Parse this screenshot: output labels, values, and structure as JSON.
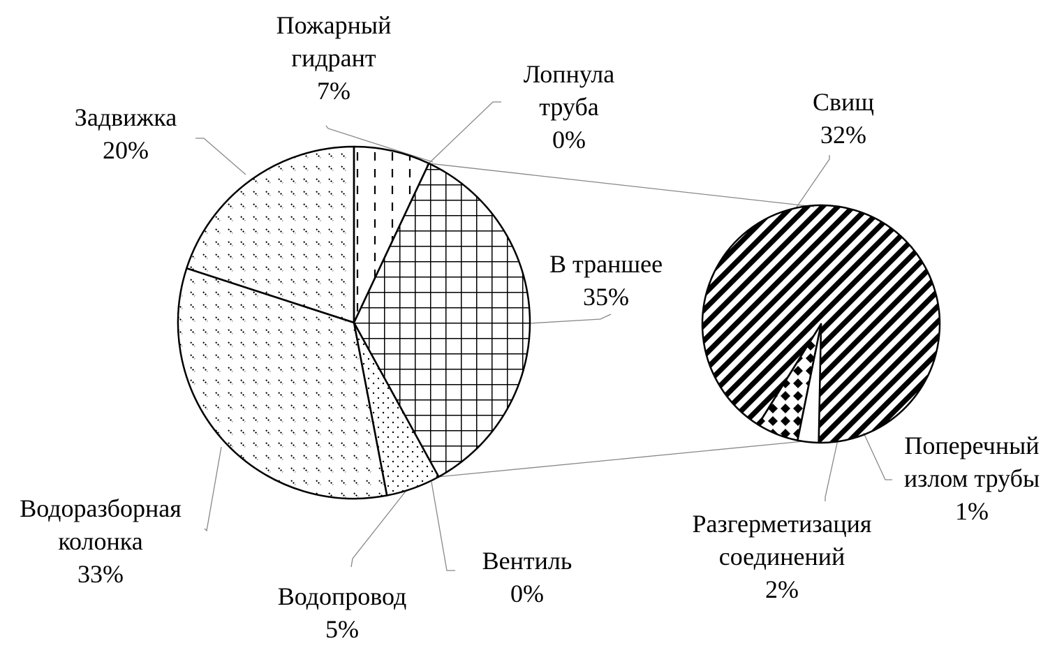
{
  "chart_data": {
    "type": "pie",
    "subtype": "pie-of-pie",
    "main": {
      "slices": [
        {
          "label_lines": [
            "Пожарный",
            "гидрант"
          ],
          "percent_label": "7%",
          "value": 7,
          "pattern": "dashed-vertical"
        },
        {
          "label_lines": [
            "Лопнула",
            "труба"
          ],
          "percent_label": "0%",
          "value": 0,
          "pattern": "none"
        },
        {
          "label_lines": [
            "В траншее"
          ],
          "percent_label": "35%",
          "value": 35,
          "pattern": "grid"
        },
        {
          "label_lines": [
            "Вентиль"
          ],
          "percent_label": "0%",
          "value": 0,
          "pattern": "none"
        },
        {
          "label_lines": [
            "Водопровод"
          ],
          "percent_label": "5%",
          "value": 5,
          "pattern": "dots"
        },
        {
          "label_lines": [
            "Водоразборная",
            "колонка"
          ],
          "percent_label": "33%",
          "value": 33,
          "pattern": "dashes-diagonal"
        },
        {
          "label_lines": [
            "Задвижка"
          ],
          "percent_label": "20%",
          "value": 20,
          "pattern": "dashes-diagonal"
        }
      ]
    },
    "secondary": {
      "parent_slice": "В траншее",
      "slices": [
        {
          "label_lines": [
            "Свищ"
          ],
          "percent_label": "32%",
          "value": 32,
          "pattern": "diagonal-stripes"
        },
        {
          "label_lines": [
            "Поперечный",
            "излом трубы"
          ],
          "percent_label": "1%",
          "value": 1,
          "pattern": "none"
        },
        {
          "label_lines": [
            "Разгерметизация",
            "соединений"
          ],
          "percent_label": "2%",
          "value": 2,
          "pattern": "diamonds"
        }
      ]
    },
    "legend": "none",
    "colors": {
      "stroke": "#000000",
      "background": "#ffffff"
    }
  }
}
